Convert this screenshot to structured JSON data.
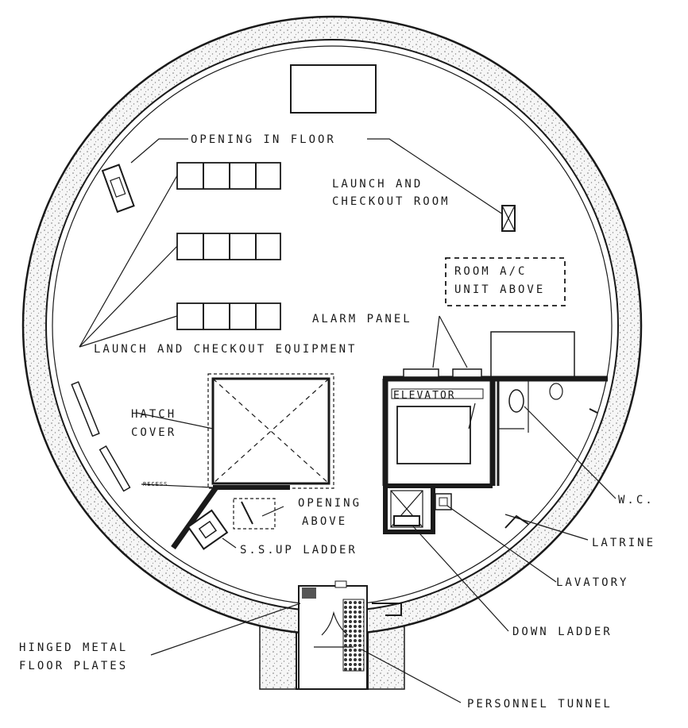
{
  "labels": {
    "opening_in_floor": "OPENING IN FLOOR",
    "launch_room_1": "LAUNCH AND",
    "launch_room_2": "CHECKOUT ROOM",
    "room_ac_1": "ROOM A/C",
    "room_ac_2": "UNIT ABOVE",
    "alarm_panel": "ALARM PANEL",
    "launch_equipment": "LAUNCH AND CHECKOUT EQUIPMENT",
    "hatch_1": "HATCH",
    "hatch_2": "COVER",
    "elevator": "ELEVATOR",
    "opening_above_1": "OPENING",
    "opening_above_2": "ABOVE",
    "recess": "RECESS",
    "ss": "S.S.",
    "up_ladder": "UP LADDER",
    "wc": "W.C.",
    "latrine": "LATRINE",
    "lavatory": "LAVATORY",
    "down_ladder": "DOWN LADDER",
    "hinged_1": "HINGED METAL",
    "hinged_2": "FLOOR PLATES",
    "personnel_tunnel": "PERSONNEL TUNNEL"
  }
}
